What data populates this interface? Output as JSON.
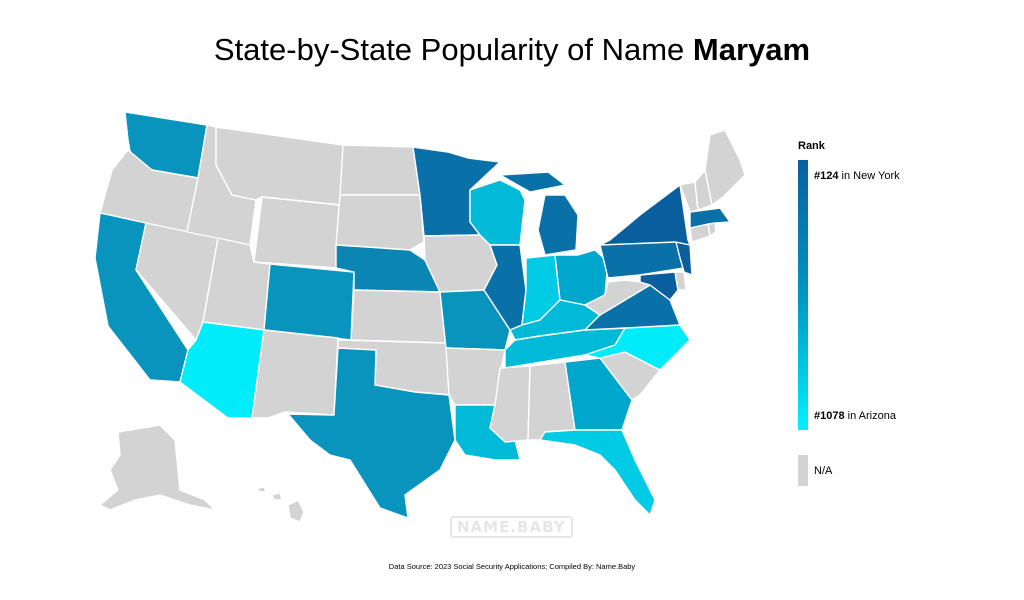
{
  "title": {
    "prefix": "State-by-State Popularity of Name ",
    "name": "Maryam"
  },
  "legend": {
    "heading": "Rank",
    "top": {
      "rank": "#124",
      "text": " in New York"
    },
    "bottom": {
      "rank": "#1078",
      "text": " in Arizona"
    },
    "na_label": "N/A",
    "gradient": [
      "#0a5f9e",
      "#0096c0",
      "#00f0ff"
    ],
    "na_color": "#d3d3d3"
  },
  "watermark": "NAME.BABY",
  "source": "Data Source: 2023 Social Security Applications; Compiled By: Name.Baby",
  "colors": {
    "darkest": "#0a5e9d",
    "dark": "#0a70a8",
    "mid_dark": "#0a85b4",
    "mid": "#0894bd",
    "mid_light": "#00a6cc",
    "light": "#00bad8",
    "lighter": "#00cbe4",
    "lightest": "#00ecfa",
    "na": "#d3d3d3"
  }
}
